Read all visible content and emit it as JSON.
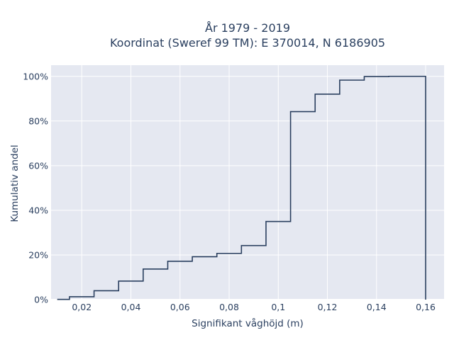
{
  "chart_data": {
    "type": "line",
    "title_line1": "År 1979 - 2019",
    "title_line2": "Koordinat (Sweref 99 TM): E 370014, N 6186905",
    "xlabel": "Signifikant våghöjd (m)",
    "ylabel": "Kumulativ andel",
    "xlim": [
      0.0075,
      0.1675
    ],
    "ylim": [
      0,
      1.05
    ],
    "x_tick_values": [
      0.02,
      0.04,
      0.06,
      0.08,
      0.1,
      0.12,
      0.14,
      0.16
    ],
    "x_tick_labels": [
      "0,02",
      "0,04",
      "0,06",
      "0,08",
      "0,1",
      "0,12",
      "0,14",
      "0,16"
    ],
    "y_tick_values": [
      0,
      0.2,
      0.4,
      0.6,
      0.8,
      1.0
    ],
    "y_tick_labels": [
      "0%",
      "20%",
      "40%",
      "60%",
      "80%",
      "100%"
    ],
    "grid": true,
    "line_shape": "step",
    "series": [
      {
        "x": [
          0.01,
          0.02,
          0.03,
          0.04,
          0.05,
          0.06,
          0.07,
          0.08,
          0.09,
          0.1,
          0.11,
          0.12,
          0.13,
          0.14,
          0.15,
          0.16
        ],
        "y": [
          0.001,
          0.013,
          0.04,
          0.083,
          0.137,
          0.172,
          0.192,
          0.207,
          0.242,
          0.35,
          0.842,
          0.92,
          0.983,
          0.999,
          1.0,
          1.0
        ]
      }
    ],
    "line_color": "#2a3f5f",
    "plot_bg": "#e5e8f1",
    "grid_color": "#ffffff"
  }
}
